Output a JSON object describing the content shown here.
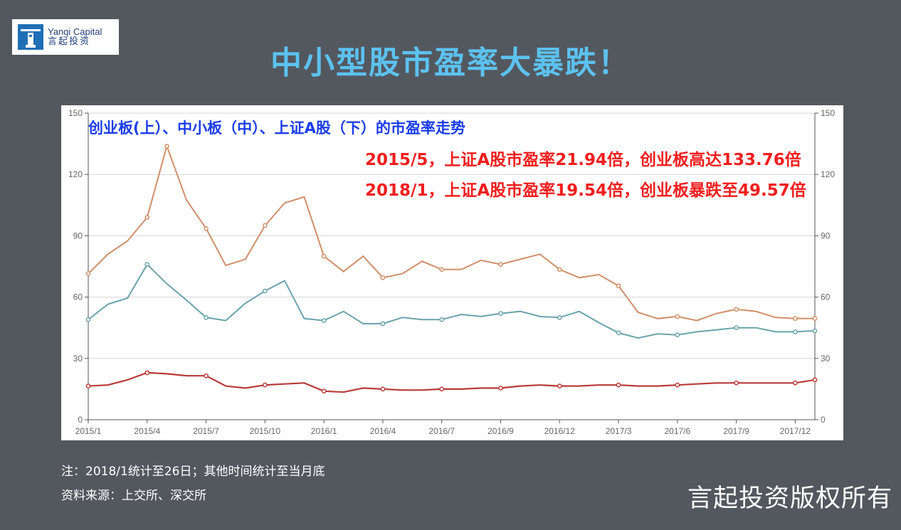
{
  "logo": {
    "en": "Yanqi Capital",
    "cn": "言起投资"
  },
  "slide_title": "中小型股市盈率大暴跌！",
  "chart_data": {
    "type": "line",
    "title": "创业板(上）、中小板（中）、上证A股（下）的市盈率走势",
    "annotations": [
      "2015/5，上证A股市盈率21.94倍，创业板高达133.76倍",
      "2018/1，上证A股市盈率19.54倍，创业板暴跌至49.57倍"
    ],
    "x_tick_labels": [
      "2015/1",
      "2015/4",
      "2015/7",
      "2015/10",
      "2016/1",
      "2016/4",
      "2016/7",
      "2016/9",
      "2016/12",
      "2017/3",
      "2017/6",
      "2017/9",
      "2017/12"
    ],
    "x_tick_index": [
      0,
      3,
      6,
      9,
      12,
      15,
      18,
      21,
      24,
      27,
      30,
      33,
      36
    ],
    "ylim": [
      0,
      150
    ],
    "y_ticks": [
      0,
      30,
      60,
      90,
      120,
      150
    ],
    "grid": true,
    "series": [
      {
        "color": "#d08f69",
        "values": [
          71.5,
          81,
          87.5,
          99,
          133.8,
          107.5,
          93.5,
          75.5,
          78.5,
          95,
          106,
          109,
          80,
          72.5,
          80,
          69.5,
          71.5,
          77.5,
          73.5,
          73.5,
          78,
          76,
          78.5,
          81,
          73.5,
          69.5,
          71,
          65.5,
          52.5,
          49.5,
          50.5,
          48.5,
          52,
          54,
          53,
          50,
          49.5,
          49.57
        ]
      },
      {
        "color": "#6aa3ad",
        "values": [
          49,
          56.5,
          59.5,
          76,
          66.5,
          58.5,
          50,
          48.5,
          57,
          63,
          68,
          49.5,
          48.5,
          53,
          47,
          47,
          50,
          49,
          49,
          51.5,
          50.5,
          52,
          53,
          50.5,
          50,
          53,
          47.5,
          42.5,
          40,
          42,
          41.5,
          43,
          44,
          45,
          45,
          43,
          43,
          43.5
        ]
      },
      {
        "color": "#b83a38",
        "values": [
          16.5,
          17,
          19.5,
          23,
          22.5,
          21.5,
          21.5,
          16.5,
          15.5,
          17,
          17.5,
          18,
          14,
          13.5,
          15.5,
          15,
          14.5,
          14.5,
          15,
          15,
          15.5,
          15.5,
          16.5,
          17,
          16.5,
          16.5,
          17,
          17,
          16.5,
          16.5,
          17,
          17.5,
          18,
          18,
          18,
          18,
          18,
          19.54
        ]
      }
    ]
  },
  "footnote": "注：2018/1统计至26日；其他时间统计至当月底",
  "source": "资料来源：上交所、深交所",
  "copyright": "言起投资版权所有"
}
